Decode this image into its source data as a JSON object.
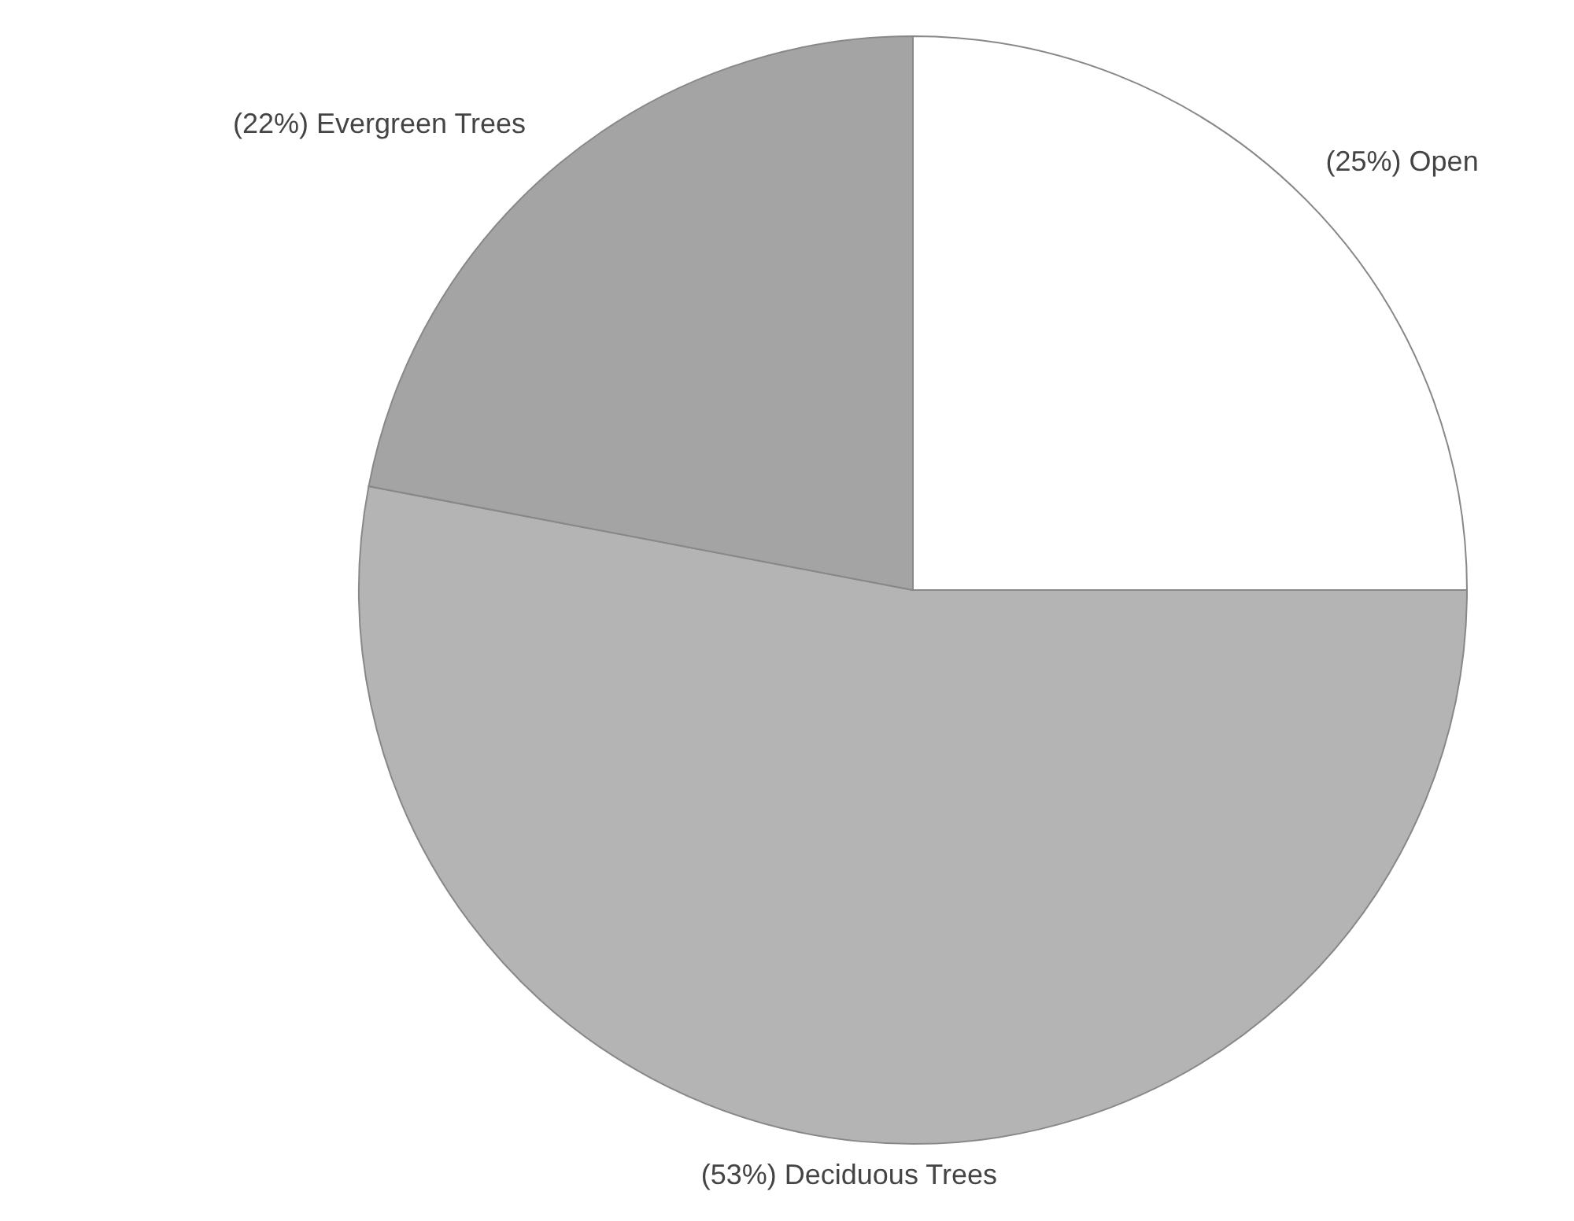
{
  "chart_data": {
    "type": "pie",
    "categories": [
      "(25%) Open",
      "(53%) Deciduous Trees",
      "(22%) Evergreen Trees"
    ],
    "values": [
      25,
      53,
      22
    ],
    "colors": [
      "#ffffff",
      "#b4b4b4",
      "#a4a4a4"
    ],
    "legend": false
  }
}
